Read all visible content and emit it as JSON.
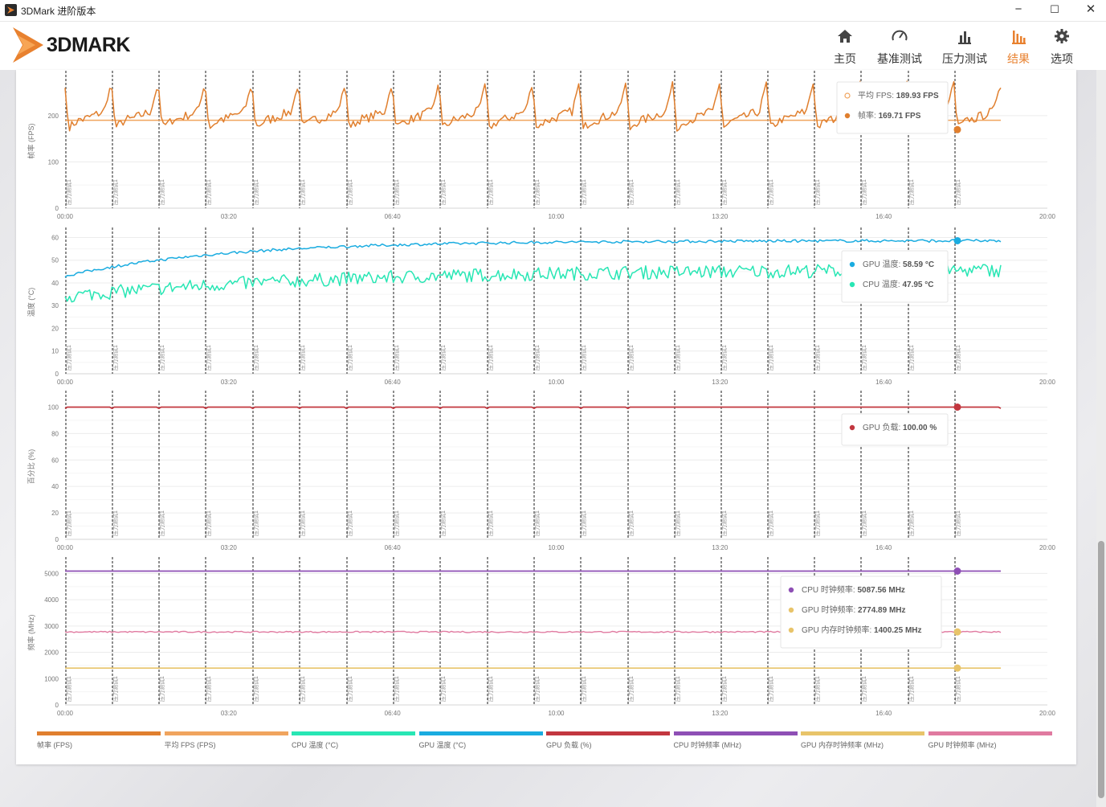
{
  "window": {
    "title": "3DMark 进阶版本",
    "minimize": "−",
    "maximize": "☐",
    "close": "✕"
  },
  "header": {
    "logo_text": "3DMARK",
    "nav": [
      {
        "label": "主页",
        "icon": "home-icon"
      },
      {
        "label": "基准测试",
        "icon": "gauge-icon"
      },
      {
        "label": "压力测试",
        "icon": "bar-chart-icon"
      },
      {
        "label": "结果",
        "icon": "results-icon",
        "active": true
      },
      {
        "label": "选项",
        "icon": "gear-icon"
      }
    ]
  },
  "colors": {
    "accent": "#e8812f",
    "fps": "#e07f2e",
    "avg_fps": "#f0a45e",
    "cpu_temp": "#28e6b4",
    "gpu_temp": "#1aace0",
    "gpu_load": "#c2373f",
    "cpu_clock": "#8e4fb5",
    "gpu_mem_clock": "#e8c46a",
    "gpu_clock": "#e07aa0"
  },
  "marker_label": "压力测试1",
  "chart_data": [
    {
      "type": "line",
      "ylabel": "帧率 (FPS)",
      "x_ticks": [
        "00:00",
        "03:20",
        "06:40",
        "10:00",
        "13:20",
        "16:40",
        "20:00"
      ],
      "yticks": [
        0,
        100,
        200
      ],
      "ylim": [
        0,
        290
      ],
      "series": [
        {
          "name": "平均 FPS",
          "constant": 189.93
        },
        {
          "name": "帧率",
          "pattern": "sawtooth",
          "base_range": [
            160,
            230
          ],
          "peak": 275,
          "cycles": 19
        }
      ],
      "legend": [
        {
          "label": "平均 FPS",
          "value": "189.93 FPS"
        },
        {
          "label": "帧率",
          "value": "169.71 FPS"
        }
      ]
    },
    {
      "type": "line",
      "ylabel": "温度 (°C)",
      "x_ticks": [
        "00:00",
        "03:20",
        "06:40",
        "10:00",
        "13:20",
        "16:40",
        "20:00"
      ],
      "yticks": [
        0,
        10,
        20,
        30,
        40,
        50,
        60
      ],
      "ylim": [
        0,
        63
      ],
      "series": [
        {
          "name": "GPU 温度",
          "start": 43,
          "end": 58.6
        },
        {
          "name": "CPU 温度",
          "start": 34,
          "end": 46
        }
      ],
      "legend": [
        {
          "label": "GPU 温度",
          "value": "58.59 °C"
        },
        {
          "label": "CPU 温度",
          "value": "47.95 °C"
        }
      ]
    },
    {
      "type": "line",
      "ylabel": "百分比 (%)",
      "x_ticks": [
        "00:00",
        "03:20",
        "06:40",
        "10:00",
        "13:20",
        "16:40",
        "20:00"
      ],
      "yticks": [
        0,
        20,
        40,
        60,
        80,
        100
      ],
      "ylim": [
        0,
        110
      ],
      "series": [
        {
          "name": "GPU 负载",
          "constant": 100
        }
      ],
      "legend": [
        {
          "label": "GPU 负载",
          "value": "100.00 %"
        }
      ]
    },
    {
      "type": "line",
      "ylabel": "频率 (MHz)",
      "x_ticks": [
        "00:00",
        "03:20",
        "06:40",
        "10:00",
        "13:20",
        "16:40",
        "20:00"
      ],
      "yticks": [
        0,
        1000,
        2000,
        3000,
        4000,
        5000
      ],
      "ylim": [
        0,
        5500
      ],
      "series": [
        {
          "name": "CPU 时钟频率",
          "constant": 5087.56
        },
        {
          "name": "GPU 时钟频率",
          "constant": 2774.89
        },
        {
          "name": "GPU 内存时钟频率",
          "constant": 1400.25
        }
      ],
      "legend": [
        {
          "label": "CPU 时钟频率",
          "value": "5087.56 MHz"
        },
        {
          "label": "GPU 时钟频率",
          "value": "2774.89 MHz"
        },
        {
          "label": "GPU 内存时钟频率",
          "value": "1400.25 MHz"
        }
      ]
    }
  ],
  "bottom_legend": [
    {
      "label": "帧率 (FPS)",
      "color": "#e07f2e"
    },
    {
      "label": "平均 FPS (FPS)",
      "color": "#f0a45e"
    },
    {
      "label": "CPU 温度 (°C)",
      "color": "#28e6b4"
    },
    {
      "label": "GPU 温度 (°C)",
      "color": "#1aace0"
    },
    {
      "label": "GPU 负载 (%)",
      "color": "#c2373f"
    },
    {
      "label": "CPU 时钟频率 (MHz)",
      "color": "#8e4fb5"
    },
    {
      "label": "GPU 内存时钟频率 (MHz)",
      "color": "#e8c46a"
    },
    {
      "label": "GPU 时钟频率 (MHz)",
      "color": "#e07aa0"
    }
  ]
}
